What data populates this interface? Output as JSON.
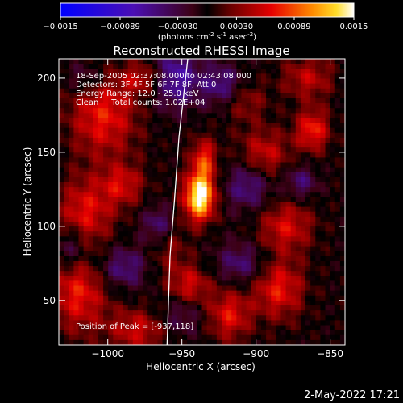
{
  "colorbar": {
    "ticks": [
      "-0.0015",
      "-0.00089",
      "-0.00030",
      "0.00030",
      "0.00089",
      "0.0015"
    ],
    "units_main": "(photons cm",
    "units_exp1": "-2",
    "units_mid1": " s",
    "units_exp2": "-1",
    "units_mid2": " asec",
    "units_exp3": "-2",
    "units_end": ")",
    "range": [
      -0.0015,
      0.0015
    ]
  },
  "chart_data": {
    "type": "heatmap",
    "title": "Reconstructed RHESSI Image",
    "xlabel": "Heliocentric X (arcsec)",
    "ylabel": "Heliocentric Y (arcsec)",
    "xlim": [
      -1033,
      -840
    ],
    "ylim": [
      20,
      213
    ],
    "xticks": [
      -1000,
      -950,
      -900,
      -850
    ],
    "xtick_labels": [
      "−1000",
      "−950",
      "−900",
      "−850"
    ],
    "yticks": [
      50,
      100,
      150,
      200
    ],
    "ytick_labels": [
      "50",
      "100",
      "150",
      "200"
    ],
    "peak": {
      "x": -937,
      "y": 118
    },
    "annotations": [
      "18-Sep-2005 02:37:08.000 to 02:43:08.000",
      "Detectors: 3F 4F 5F 6F 7F 8F, Att 0",
      "Energy Range: 12.0 - 25.0 keV",
      "Clean     Total counts: 1.02E+04"
    ],
    "peak_label": "Position of Peak = [-937,118]",
    "limb_points": [
      [
        -946,
        213
      ],
      [
        -952,
        160
      ],
      [
        -955,
        118
      ],
      [
        -958,
        80
      ],
      [
        -959,
        50
      ],
      [
        -960,
        20
      ]
    ],
    "blobs": [
      {
        "x": -938,
        "y": 120,
        "sx": 7,
        "sy": 11,
        "amp": 0.0016
      },
      {
        "x": -935,
        "y": 145,
        "sx": 6,
        "sy": 10,
        "amp": 0.00075
      },
      {
        "x": -1003,
        "y": 175,
        "sx": 16,
        "sy": 20,
        "amp": 0.0007
      },
      {
        "x": -1015,
        "y": 110,
        "sx": 13,
        "sy": 16,
        "amp": 0.00065
      },
      {
        "x": -990,
        "y": 128,
        "sx": 10,
        "sy": 10,
        "amp": 0.00055
      },
      {
        "x": -1020,
        "y": 55,
        "sx": 14,
        "sy": 18,
        "amp": 0.0007
      },
      {
        "x": -980,
        "y": 30,
        "sx": 14,
        "sy": 10,
        "amp": 0.00055
      },
      {
        "x": -945,
        "y": 60,
        "sx": 10,
        "sy": 10,
        "amp": 0.0006
      },
      {
        "x": -918,
        "y": 40,
        "sx": 10,
        "sy": 12,
        "amp": 0.00065
      },
      {
        "x": -885,
        "y": 58,
        "sx": 12,
        "sy": 14,
        "amp": 0.0007
      },
      {
        "x": -880,
        "y": 100,
        "sx": 13,
        "sy": 12,
        "amp": 0.0006
      },
      {
        "x": -895,
        "y": 148,
        "sx": 12,
        "sy": 12,
        "amp": 0.0006
      },
      {
        "x": -862,
        "y": 165,
        "sx": 8,
        "sy": 10,
        "amp": 0.00075
      },
      {
        "x": -865,
        "y": 200,
        "sx": 12,
        "sy": 10,
        "amp": 0.0005
      },
      {
        "x": -908,
        "y": 185,
        "sx": 10,
        "sy": 10,
        "amp": 0.0004
      },
      {
        "x": -975,
        "y": 200,
        "sx": 10,
        "sy": 8,
        "amp": 0.00055
      },
      {
        "x": -960,
        "y": 90,
        "sx": 9,
        "sy": 14,
        "amp": 0.00045
      },
      {
        "x": -990,
        "y": 72,
        "sx": 12,
        "sy": 10,
        "amp": -0.00055
      },
      {
        "x": -965,
        "y": 100,
        "sx": 8,
        "sy": 10,
        "amp": -0.0007
      },
      {
        "x": -955,
        "y": 200,
        "sx": 12,
        "sy": 14,
        "amp": -0.00075
      },
      {
        "x": -922,
        "y": 195,
        "sx": 10,
        "sy": 10,
        "amp": -0.0006
      },
      {
        "x": -905,
        "y": 128,
        "sx": 11,
        "sy": 12,
        "amp": -0.0006
      },
      {
        "x": -910,
        "y": 75,
        "sx": 12,
        "sy": 10,
        "amp": -0.0005
      },
      {
        "x": -1025,
        "y": 85,
        "sx": 8,
        "sy": 10,
        "amp": -0.0005
      },
      {
        "x": -870,
        "y": 130,
        "sx": 8,
        "sy": 8,
        "amp": -0.0005
      },
      {
        "x": -950,
        "y": 40,
        "sx": 10,
        "sy": 10,
        "amp": -0.0004
      },
      {
        "x": -1015,
        "y": 200,
        "sx": 10,
        "sy": 8,
        "amp": -0.0004
      }
    ]
  },
  "footer": {
    "timestamp": "2-May-2022 17:21"
  }
}
